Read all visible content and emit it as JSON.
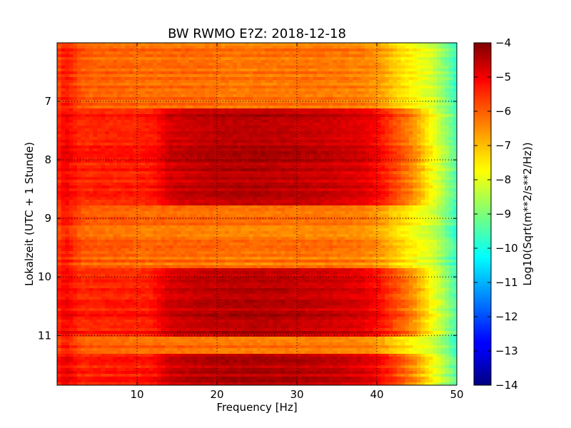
{
  "chart_data": {
    "type": "heatmap",
    "title": "BW RWMO E?Z: 2018-12-18",
    "xlabel": "Frequency [Hz]",
    "ylabel": "Lokalzeit (UTC + 1 Stunde)",
    "xlim": [
      0,
      50
    ],
    "ylim": [
      6.0,
      11.85
    ],
    "x_ticks": [
      10,
      20,
      30,
      40,
      50
    ],
    "y_ticks": [
      7,
      8,
      9,
      10,
      11
    ],
    "y_inverted": true,
    "grid": true,
    "colormap": "jet",
    "colorbar": {
      "label": "Log10(Sqrt(m**2/s**2/Hz))",
      "range": [
        -14,
        -4
      ],
      "ticks": [
        -4,
        -5,
        -6,
        -7,
        -8,
        -9,
        -10,
        -11,
        -12,
        -13,
        -14
      ]
    },
    "level_profile": {
      "frequency_hz": [
        0,
        1,
        3,
        5,
        8,
        10,
        12,
        14,
        18,
        22,
        26,
        30,
        34,
        38,
        40,
        41,
        42,
        43,
        44,
        45,
        46,
        47,
        48,
        49,
        50
      ],
      "background_log10": [
        -6.0,
        -5.4,
        -6.1,
        -6.2,
        -6.2,
        -6.3,
        -6.3,
        -6.3,
        -6.3,
        -6.4,
        -6.4,
        -6.4,
        -6.4,
        -6.5,
        -6.7,
        -6.9,
        -7.2,
        -7.4,
        -7.6,
        -7.8,
        -8.0,
        -8.2,
        -8.7,
        -9.2,
        -9.8
      ],
      "active_log10": [
        -5.6,
        -5.1,
        -5.6,
        -5.5,
        -5.5,
        -5.5,
        -5.4,
        -4.8,
        -4.6,
        -4.5,
        -4.5,
        -4.6,
        -4.7,
        -4.9,
        -5.2,
        -5.5,
        -5.8,
        -6.1,
        -6.4,
        -6.8,
        -7.3,
        -7.8,
        -8.3,
        -8.9,
        -9.5
      ]
    },
    "active_periods_local_time": [
      [
        7.1,
        8.8
      ],
      [
        9.85,
        11.0
      ],
      [
        11.3,
        11.85
      ]
    ]
  }
}
